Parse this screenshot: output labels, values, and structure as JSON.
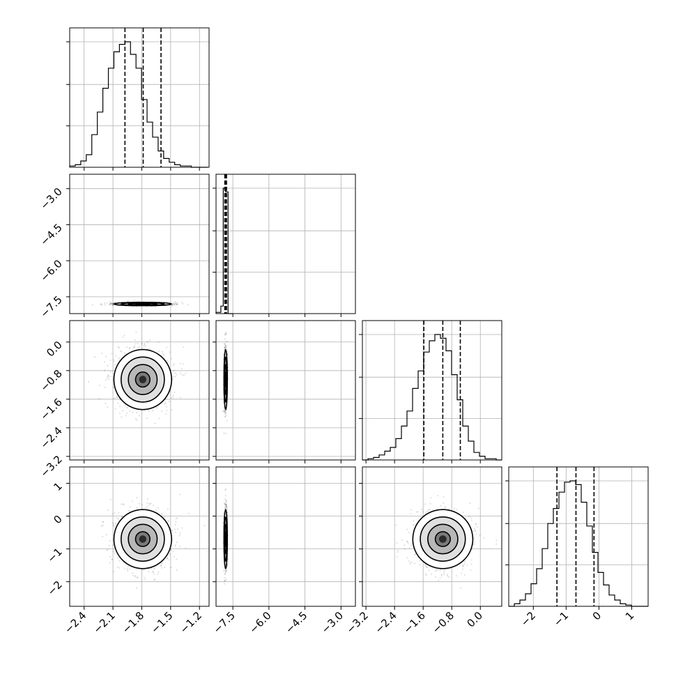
{
  "chart_data": {
    "type": "corner",
    "params": [
      "p0",
      "p1",
      "p2",
      "p3"
    ],
    "ranges": {
      "p0": [
        -2.55,
        -1.1
      ],
      "p1": [
        -8.2,
        -2.4
      ],
      "p2": [
        -3.3,
        0.6
      ],
      "p3": [
        -2.75,
        1.5
      ]
    },
    "ticks": {
      "p0": {
        "values": [
          -2.4,
          -2.1,
          -1.8,
          -1.5,
          -1.2
        ],
        "labels": [
          "−2.4",
          "−2.1",
          "−1.8",
          "−1.5",
          "−1.2"
        ]
      },
      "p1": {
        "values": [
          -7.5,
          -6.0,
          -4.5,
          -3.0
        ],
        "labels": [
          "−7.5",
          "−6.0",
          "−4.5",
          "−3.0"
        ]
      },
      "p2": {
        "values": [
          -3.2,
          -2.4,
          -1.6,
          -0.8,
          0.0
        ],
        "labels": [
          "−3.2",
          "−2.4",
          "−1.6",
          "−0.8",
          "0.0"
        ]
      },
      "p3": {
        "values": [
          -2,
          -1,
          0,
          1
        ],
        "labels": [
          "−2",
          "−1",
          "0",
          "1"
        ]
      }
    },
    "marginals": [
      {
        "param": "p0",
        "quantiles": [
          -1.975,
          -1.785,
          -1.6
        ],
        "bins": [
          -2.55,
          -2.4925,
          -2.435,
          -2.3775,
          -2.32,
          -2.2625,
          -2.205,
          -2.1475,
          -2.09,
          -2.0325,
          -1.975,
          -1.9175,
          -1.86,
          -1.8025,
          -1.745,
          -1.6875,
          -1.63,
          -1.5725,
          -1.515,
          -1.4575,
          -1.4,
          -1.3425,
          -1.285,
          -1.2275,
          -1.17,
          -1.1125
        ],
        "counts": [
          0.01,
          0.02,
          0.05,
          0.1,
          0.26,
          0.44,
          0.63,
          0.79,
          0.92,
          0.98,
          1.0,
          0.9,
          0.79,
          0.54,
          0.36,
          0.24,
          0.13,
          0.07,
          0.04,
          0.02,
          0.01,
          0.01,
          0.0,
          0.0,
          0.0
        ]
      },
      {
        "param": "p1",
        "quantiles": [
          -7.835,
          -7.8,
          -7.765
        ],
        "bins": [
          -8.2,
          -8.0,
          -7.9,
          -7.8,
          -7.7,
          -7.5
        ],
        "counts": [
          0.01,
          0.06,
          1.0,
          0.97,
          0.0
        ]
      },
      {
        "param": "p2",
        "quantiles": [
          -1.58,
          -1.05,
          -0.56
        ],
        "bins": [
          -3.3,
          -3.144,
          -2.988,
          -2.832,
          -2.676,
          -2.52,
          -2.364,
          -2.208,
          -2.052,
          -1.896,
          -1.74,
          -1.584,
          -1.428,
          -1.272,
          -1.116,
          -0.96,
          -0.804,
          -0.648,
          -0.492,
          -0.336,
          -0.18,
          -0.024,
          0.132,
          0.288,
          0.444,
          0.6
        ],
        "counts": [
          0.0,
          0.01,
          0.02,
          0.04,
          0.07,
          0.1,
          0.17,
          0.27,
          0.39,
          0.57,
          0.71,
          0.86,
          0.95,
          1.0,
          0.97,
          0.87,
          0.68,
          0.48,
          0.27,
          0.15,
          0.06,
          0.03,
          0.01,
          0.01,
          0.0
        ]
      },
      {
        "param": "p3",
        "quantiles": [
          -1.28,
          -0.7,
          -0.15
        ],
        "bins": [
          -2.75,
          -2.58,
          -2.41,
          -2.24,
          -2.07,
          -1.9,
          -1.73,
          -1.56,
          -1.39,
          -1.22,
          -1.05,
          -0.88,
          -0.71,
          -0.54,
          -0.37,
          -0.2,
          -0.03,
          0.14,
          0.31,
          0.48,
          0.65,
          0.82,
          0.99,
          1.16,
          1.33,
          1.5
        ],
        "counts": [
          0.0,
          0.02,
          0.05,
          0.1,
          0.18,
          0.3,
          0.46,
          0.66,
          0.78,
          0.91,
          0.99,
          1.0,
          0.97,
          0.83,
          0.64,
          0.43,
          0.27,
          0.17,
          0.09,
          0.05,
          0.02,
          0.01,
          0.0,
          0.0,
          0.0
        ]
      }
    ],
    "joints": [
      {
        "x": "p0",
        "y": "p1",
        "mean": [
          -1.79,
          -7.8
        ],
        "sd": [
          0.15,
          0.035
        ]
      },
      {
        "x": "p0",
        "y": "p2",
        "mean": [
          -1.79,
          -1.05
        ],
        "sd": [
          0.15,
          0.42
        ]
      },
      {
        "x": "p1",
        "y": "p2",
        "mean": [
          -7.8,
          -1.05
        ],
        "sd": [
          0.035,
          0.42
        ]
      },
      {
        "x": "p0",
        "y": "p3",
        "mean": [
          -1.79,
          -0.7
        ],
        "sd": [
          0.15,
          0.45
        ]
      },
      {
        "x": "p1",
        "y": "p3",
        "mean": [
          -7.8,
          -0.7
        ],
        "sd": [
          0.035,
          0.45
        ]
      },
      {
        "x": "p2",
        "y": "p3",
        "mean": [
          -1.05,
          -0.7
        ],
        "sd": [
          0.42,
          0.45
        ]
      }
    ],
    "contour_levels_sigma": [
      0.5,
      1.0,
      1.5,
      2.0
    ],
    "grid": true,
    "colors": {
      "line": "#000000",
      "grid": "#b0b0b0",
      "points": "#000000"
    }
  }
}
